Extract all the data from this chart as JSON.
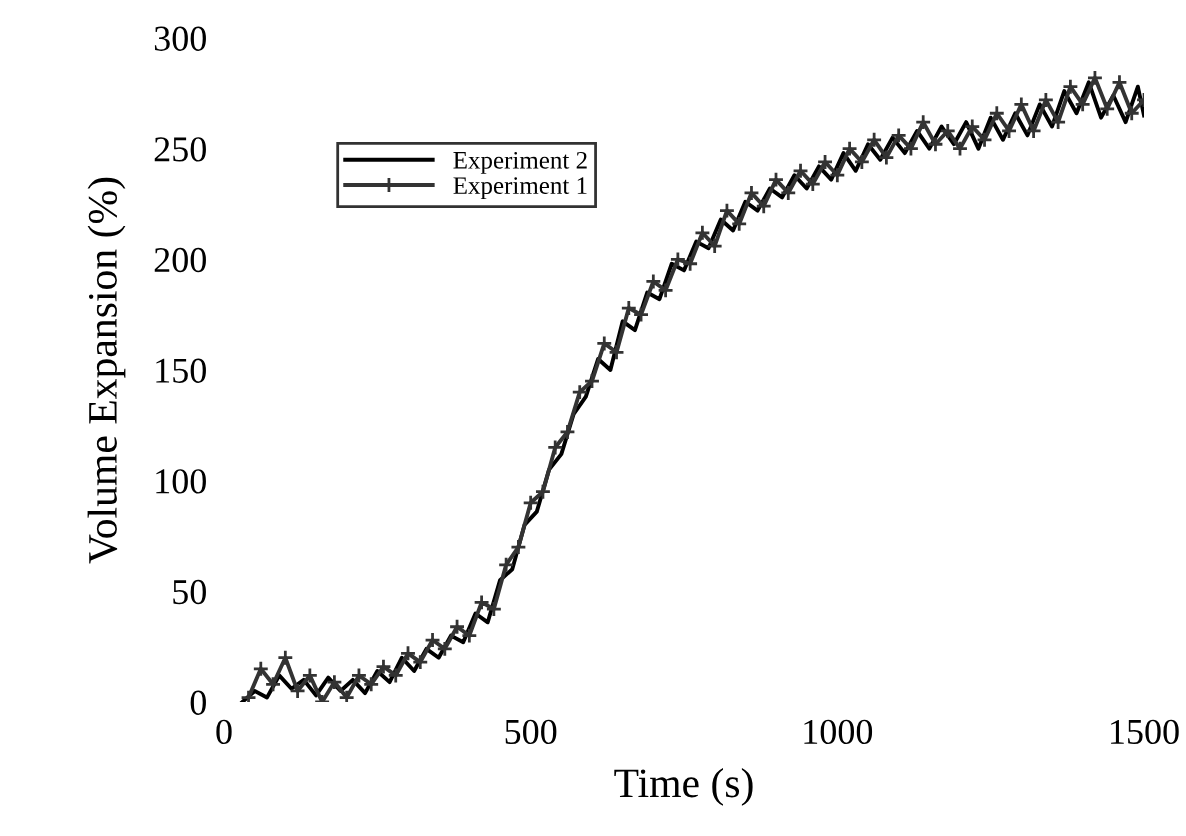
{
  "chart_data": {
    "type": "line",
    "xlabel": "Time (s)",
    "ylabel": "Volume Expansion (%)",
    "xlim": [
      0,
      1500
    ],
    "xticks": [
      0,
      500,
      1000,
      1500
    ],
    "ylim": [
      0,
      300
    ],
    "yticks": [
      0,
      50,
      100,
      150,
      200,
      250,
      300
    ],
    "legend": "top left",
    "grid": false,
    "line_style": "solid",
    "series": [
      {
        "name": "Experiment 2",
        "color": "#000000",
        "marker": "none",
        "x": [
          30,
          50,
          70,
          90,
          110,
          130,
          150,
          170,
          190,
          210,
          230,
          250,
          270,
          290,
          310,
          330,
          350,
          370,
          390,
          410,
          430,
          450,
          470,
          490,
          510,
          530,
          550,
          570,
          590,
          610,
          630,
          650,
          670,
          690,
          710,
          730,
          750,
          770,
          790,
          810,
          830,
          850,
          870,
          890,
          910,
          930,
          950,
          970,
          990,
          1010,
          1030,
          1050,
          1070,
          1090,
          1110,
          1130,
          1150,
          1170,
          1190,
          1210,
          1230,
          1250,
          1270,
          1290,
          1310,
          1330,
          1350,
          1370,
          1390,
          1410,
          1430,
          1450,
          1470,
          1490,
          1500
        ],
        "values": [
          0,
          5,
          2,
          12,
          6,
          10,
          3,
          11,
          5,
          10,
          4,
          14,
          9,
          20,
          14,
          24,
          20,
          30,
          27,
          40,
          36,
          55,
          60,
          80,
          86,
          105,
          112,
          130,
          138,
          155,
          150,
          172,
          168,
          185,
          182,
          198,
          195,
          208,
          205,
          218,
          213,
          226,
          222,
          232,
          228,
          238,
          232,
          242,
          236,
          248,
          240,
          252,
          245,
          255,
          248,
          258,
          250,
          260,
          252,
          262,
          250,
          264,
          254,
          266,
          256,
          270,
          260,
          276,
          266,
          280,
          264,
          274,
          262,
          278,
          265
        ]
      },
      {
        "name": "Experiment 1",
        "color": "#333333",
        "marker": "cross",
        "x": [
          40,
          60,
          80,
          100,
          120,
          140,
          160,
          180,
          200,
          220,
          240,
          260,
          280,
          300,
          320,
          340,
          360,
          380,
          400,
          420,
          440,
          460,
          480,
          500,
          520,
          540,
          560,
          580,
          600,
          620,
          640,
          660,
          680,
          700,
          720,
          740,
          760,
          780,
          800,
          820,
          840,
          860,
          880,
          900,
          920,
          940,
          960,
          980,
          1000,
          1020,
          1040,
          1060,
          1080,
          1100,
          1120,
          1140,
          1160,
          1180,
          1200,
          1220,
          1240,
          1260,
          1280,
          1300,
          1320,
          1340,
          1360,
          1380,
          1400,
          1420,
          1440,
          1460,
          1480,
          1500
        ],
        "values": [
          2,
          15,
          8,
          20,
          5,
          12,
          0,
          9,
          2,
          12,
          8,
          16,
          12,
          22,
          18,
          28,
          24,
          34,
          30,
          45,
          42,
          62,
          70,
          90,
          95,
          115,
          122,
          140,
          145,
          162,
          158,
          178,
          175,
          190,
          186,
          200,
          198,
          212,
          206,
          222,
          216,
          230,
          224,
          236,
          230,
          240,
          234,
          244,
          238,
          250,
          244,
          254,
          246,
          256,
          250,
          262,
          252,
          258,
          250,
          260,
          254,
          266,
          258,
          270,
          258,
          272,
          262,
          278,
          270,
          282,
          268,
          280,
          266,
          272
        ]
      }
    ]
  }
}
